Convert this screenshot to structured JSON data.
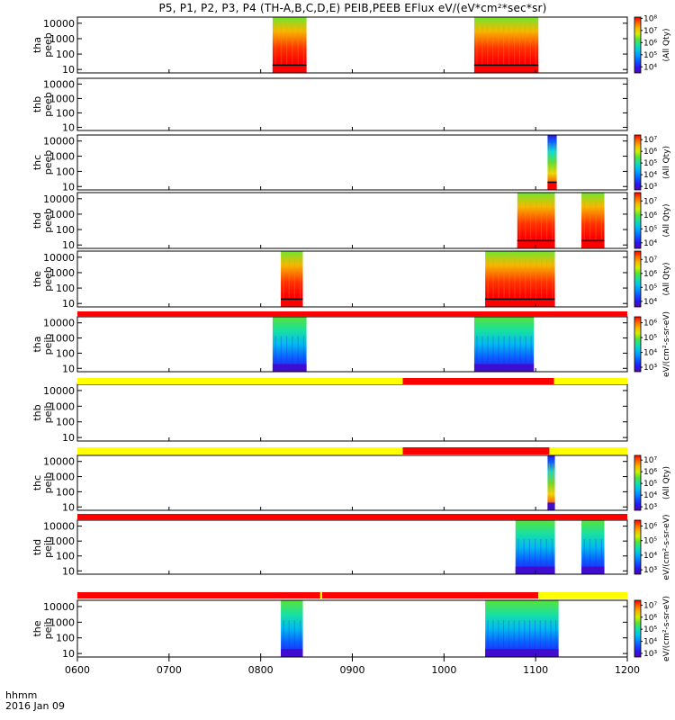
{
  "title": "P5, P1, P2, P3, P4 (TH-A,B,C,D,E) PEIB,PEEB EFlux eV/(eV*cm²*sec*sr)",
  "corner": {
    "line1": "hhmm",
    "line2": "2016 Jan 09"
  },
  "colors": {
    "flag_red": "#ff0000",
    "flag_yellow": "#ffff00",
    "frame": "#000000"
  },
  "chart_data": {
    "type": "heatmap",
    "xlim": [
      600,
      1200
    ],
    "x_ticks": [
      "0600",
      "0700",
      "0800",
      "0900",
      "1000",
      "1100",
      "1200"
    ],
    "x_tick_values": [
      600,
      700,
      800,
      900,
      1000,
      1100,
      1200
    ],
    "ylim": [
      6,
      25000
    ],
    "y_scale": "log",
    "y_ticks": [
      "10",
      "100",
      "1000",
      "10000"
    ],
    "y_tick_values": [
      10,
      100,
      1000,
      10000
    ],
    "panels": [
      {
        "label1": "tha",
        "label2": "peeb",
        "cbar": {
          "ticks": [
            "10⁴",
            "10⁵",
            "10⁶",
            "10⁷",
            "10⁸"
          ],
          "exp_min": 3.5,
          "exp_max": 8.1,
          "label": "(All Qty)"
        },
        "blocks": [
          {
            "x0": 813,
            "x1": 850,
            "kind": "e",
            "base": "red"
          },
          {
            "x0": 1033,
            "x1": 1103,
            "kind": "e",
            "base": "red"
          }
        ]
      },
      {
        "label1": "thb",
        "label2": "peeb",
        "cbar": null,
        "blocks": []
      },
      {
        "label1": "thc",
        "label2": "peeb",
        "cbar": {
          "ticks": [
            "10³",
            "10⁴",
            "10⁵",
            "10⁶",
            "10⁷"
          ],
          "exp_min": 2.7,
          "exp_max": 7.4,
          "label": "(All Qty)"
        },
        "blocks": [
          {
            "x0": 1113,
            "x1": 1123,
            "kind": "c",
            "base": "red"
          }
        ]
      },
      {
        "label1": "thd",
        "label2": "peeb",
        "cbar": {
          "ticks": [
            "10⁴",
            "10⁵",
            "10⁶",
            "10⁷"
          ],
          "exp_min": 3.6,
          "exp_max": 7.6,
          "label": "(All Qty)"
        },
        "blocks": [
          {
            "x0": 1080,
            "x1": 1121,
            "kind": "e",
            "base": "red"
          },
          {
            "x0": 1150,
            "x1": 1175,
            "kind": "e",
            "base": "red"
          }
        ]
      },
      {
        "label1": "the",
        "label2": "peeb",
        "cbar": {
          "ticks": [
            "10⁴",
            "10⁵",
            "10⁶",
            "10⁷"
          ],
          "exp_min": 3.6,
          "exp_max": 7.6,
          "label": "(All Qty)"
        },
        "blocks": [
          {
            "x0": 822,
            "x1": 846,
            "kind": "e",
            "base": "red"
          },
          {
            "x0": 1045,
            "x1": 1121,
            "kind": "e",
            "base": "red"
          }
        ]
      },
      {
        "label1": "tha",
        "label2": "peib",
        "cbar": {
          "ticks": [
            "10³",
            "10⁴",
            "10⁵",
            "10⁶"
          ],
          "exp_min": 2.7,
          "exp_max": 6.4,
          "label": "eV/(cm²-s-sr-eV)"
        },
        "blocks": [
          {
            "x0": 813,
            "x1": 850,
            "kind": "i",
            "base": "blue"
          },
          {
            "x0": 1033,
            "x1": 1098,
            "kind": "i",
            "base": "blue"
          }
        ]
      },
      {
        "label1": "thb",
        "label2": "peib",
        "cbar": null,
        "blocks": []
      },
      {
        "label1": "thc",
        "label2": "peib",
        "cbar": {
          "ticks": [
            "10³",
            "10⁴",
            "10⁵",
            "10⁶",
            "10⁷"
          ],
          "exp_min": 2.7,
          "exp_max": 7.4,
          "label": "(All Qty)"
        },
        "blocks": [
          {
            "x0": 1113,
            "x1": 1121,
            "kind": "c",
            "base": "blue"
          }
        ]
      },
      {
        "label1": "thd",
        "label2": "peib",
        "cbar": {
          "ticks": [
            "10³",
            "10⁴",
            "10⁵",
            "10⁶"
          ],
          "exp_min": 2.7,
          "exp_max": 6.4,
          "label": "eV/(cm²-s-sr-eV)"
        },
        "blocks": [
          {
            "x0": 1078,
            "x1": 1121,
            "kind": "i",
            "base": "blue"
          },
          {
            "x0": 1150,
            "x1": 1175,
            "kind": "i",
            "base": "blue"
          }
        ]
      },
      {
        "label1": "the",
        "label2": "peib",
        "cbar": {
          "ticks": [
            "10³",
            "10⁴",
            "10⁵",
            "10⁶",
            "10⁷"
          ],
          "exp_min": 2.7,
          "exp_max": 7.4,
          "label": "eV/(cm²-s-sr-eV)"
        },
        "blocks": [
          {
            "x0": 822,
            "x1": 846,
            "kind": "i",
            "base": "blue"
          },
          {
            "x0": 1045,
            "x1": 1125,
            "kind": "i",
            "base": "blue"
          }
        ]
      }
    ],
    "flags": [
      {
        "segments": [
          {
            "x0": 600,
            "x1": 1200,
            "color": "red"
          }
        ]
      },
      {
        "segments": [
          {
            "x0": 600,
            "x1": 955,
            "color": "yellow"
          },
          {
            "x0": 955,
            "x1": 1120,
            "color": "red"
          },
          {
            "x0": 1120,
            "x1": 1200,
            "color": "yellow"
          }
        ]
      },
      {
        "segments": [
          {
            "x0": 600,
            "x1": 955,
            "color": "yellow"
          },
          {
            "x0": 955,
            "x1": 1115,
            "color": "red"
          },
          {
            "x0": 1115,
            "x1": 1200,
            "color": "yellow"
          }
        ]
      },
      {
        "segments": [
          {
            "x0": 600,
            "x1": 1200,
            "color": "red"
          }
        ]
      },
      {
        "segments": [
          {
            "x0": 600,
            "x1": 865,
            "color": "red"
          },
          {
            "x0": 865,
            "x1": 867,
            "color": "yellow"
          },
          {
            "x0": 867,
            "x1": 1103,
            "color": "red"
          },
          {
            "x0": 1103,
            "x1": 1200,
            "color": "yellow"
          }
        ]
      }
    ]
  }
}
